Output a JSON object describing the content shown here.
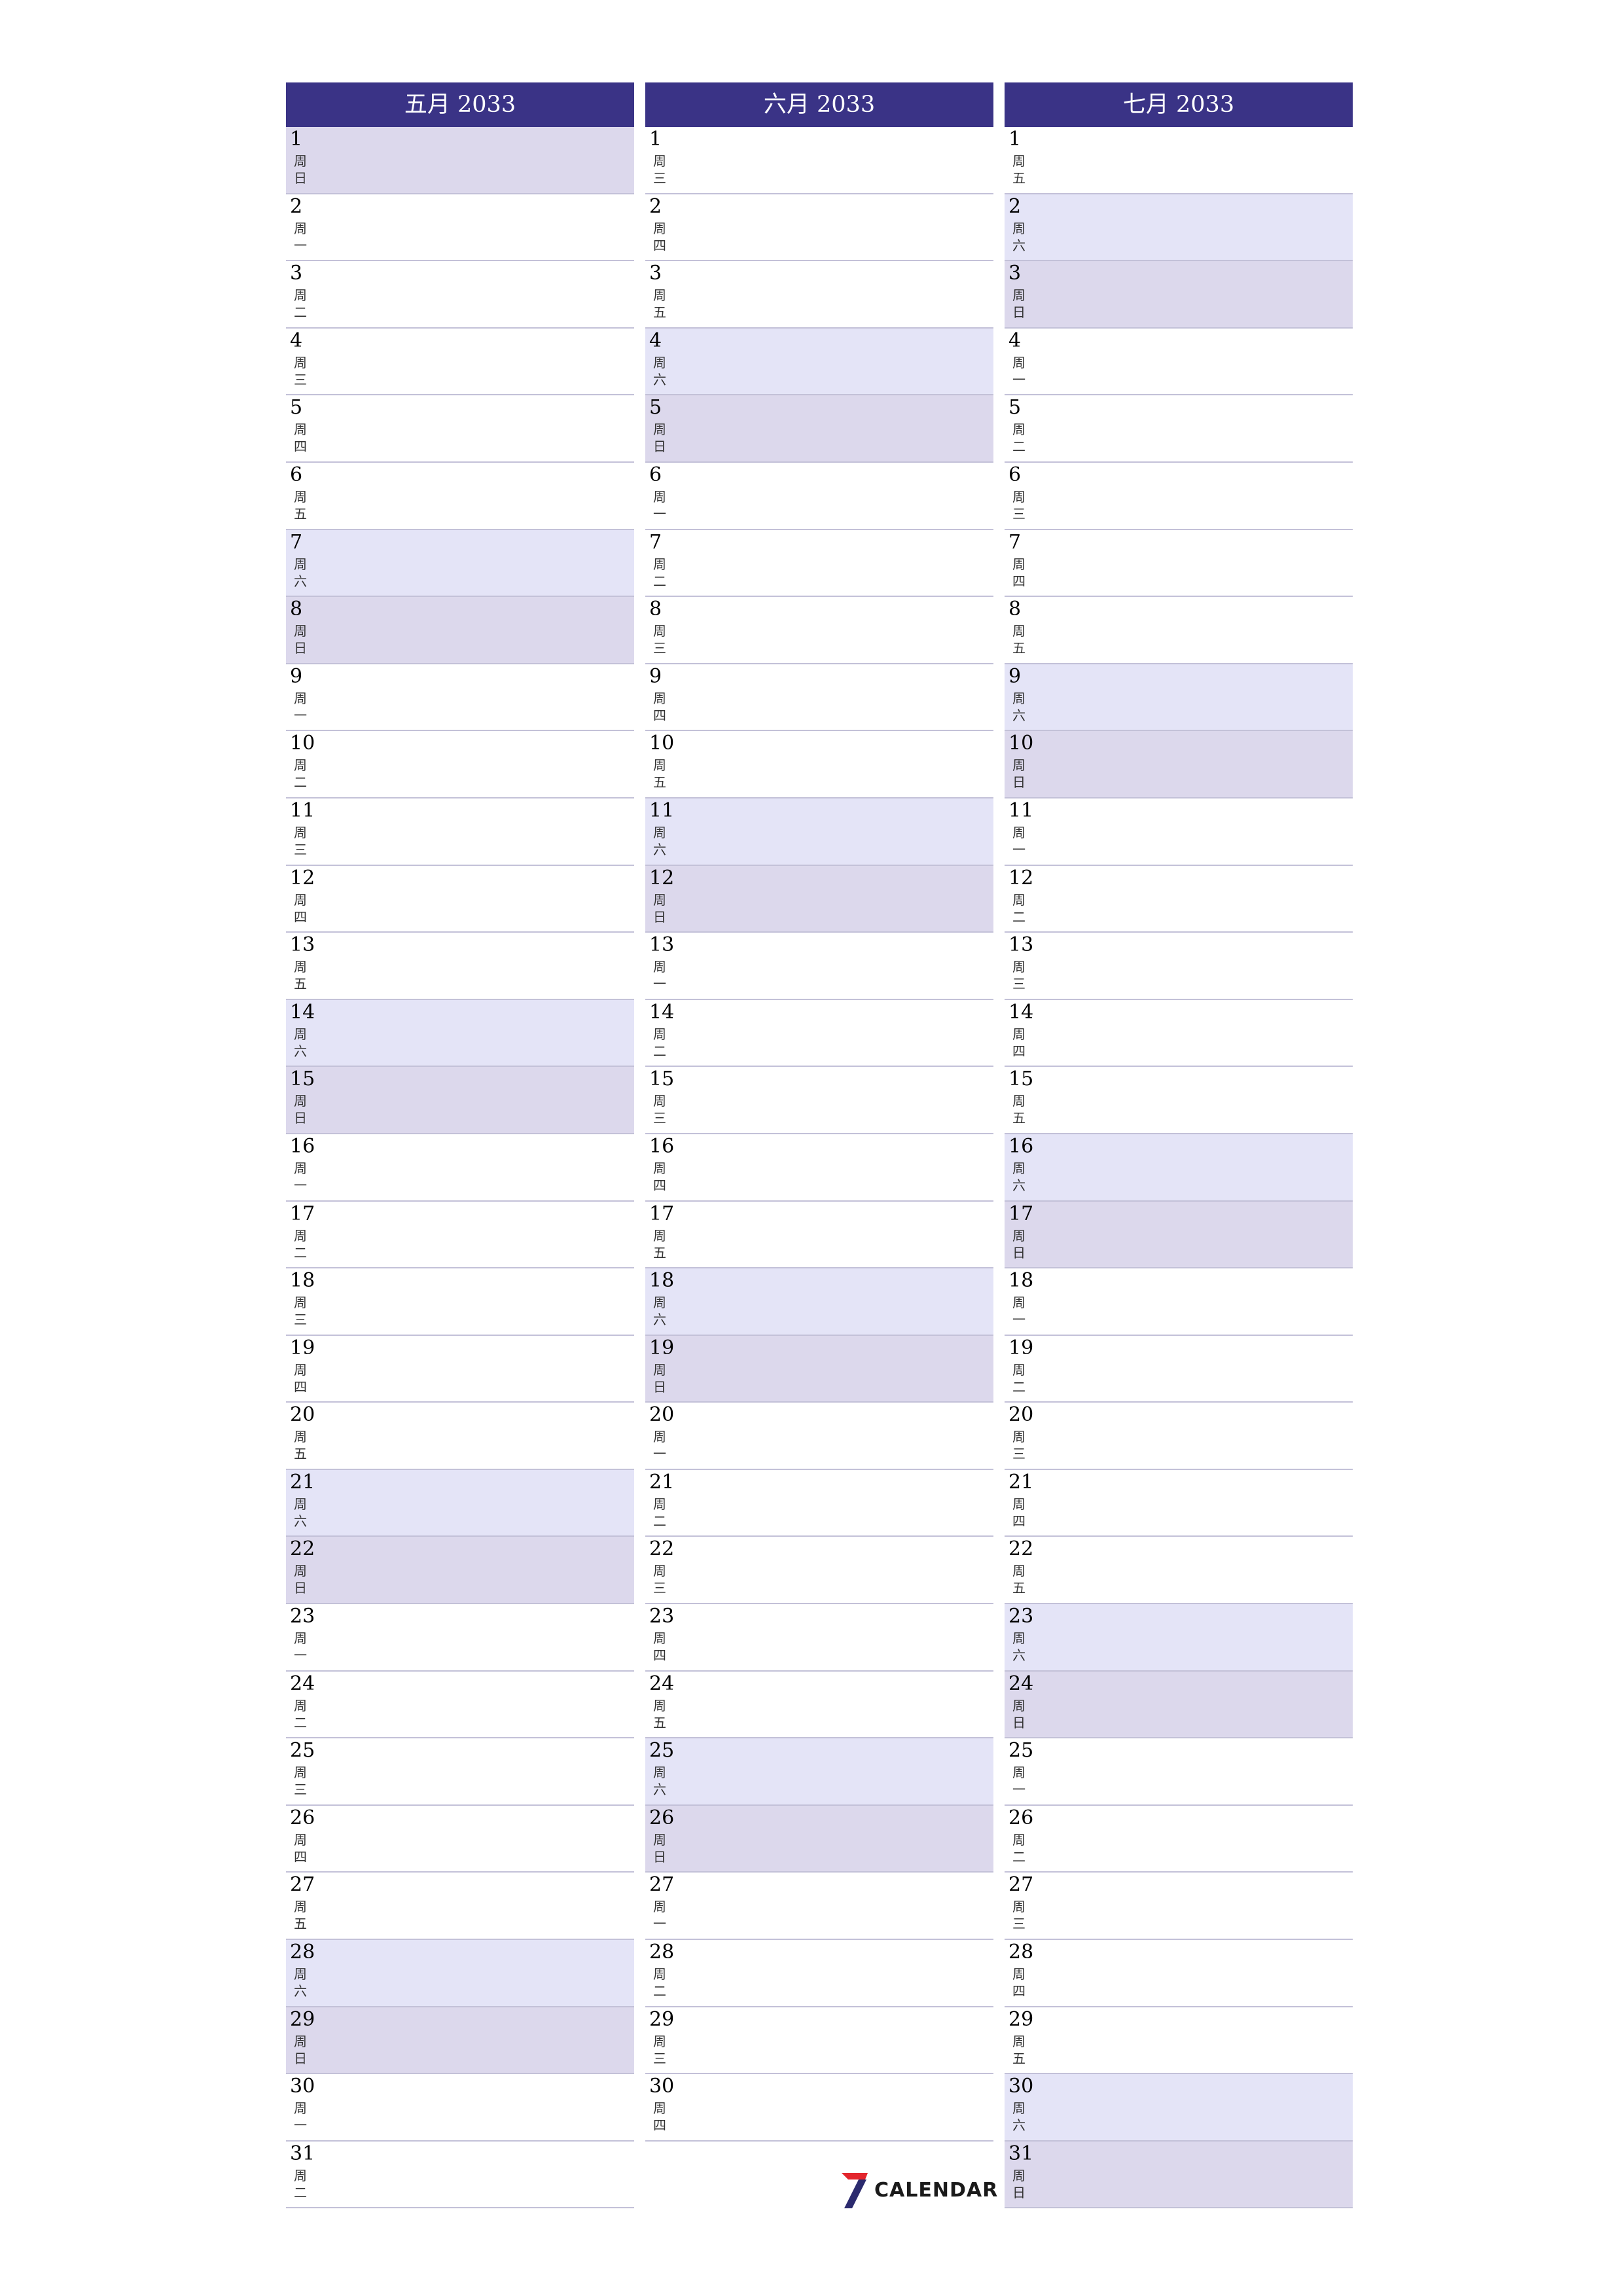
{
  "months": [
    {
      "title": "五月 2033",
      "days": [
        {
          "num": "1",
          "w": "日"
        },
        {
          "num": "2",
          "w": "一"
        },
        {
          "num": "3",
          "w": "二"
        },
        {
          "num": "4",
          "w": "三"
        },
        {
          "num": "5",
          "w": "四"
        },
        {
          "num": "6",
          "w": "五"
        },
        {
          "num": "7",
          "w": "六"
        },
        {
          "num": "8",
          "w": "日"
        },
        {
          "num": "9",
          "w": "一"
        },
        {
          "num": "10",
          "w": "二"
        },
        {
          "num": "11",
          "w": "三"
        },
        {
          "num": "12",
          "w": "四"
        },
        {
          "num": "13",
          "w": "五"
        },
        {
          "num": "14",
          "w": "六"
        },
        {
          "num": "15",
          "w": "日"
        },
        {
          "num": "16",
          "w": "一"
        },
        {
          "num": "17",
          "w": "二"
        },
        {
          "num": "18",
          "w": "三"
        },
        {
          "num": "19",
          "w": "四"
        },
        {
          "num": "20",
          "w": "五"
        },
        {
          "num": "21",
          "w": "六"
        },
        {
          "num": "22",
          "w": "日"
        },
        {
          "num": "23",
          "w": "一"
        },
        {
          "num": "24",
          "w": "二"
        },
        {
          "num": "25",
          "w": "三"
        },
        {
          "num": "26",
          "w": "四"
        },
        {
          "num": "27",
          "w": "五"
        },
        {
          "num": "28",
          "w": "六"
        },
        {
          "num": "29",
          "w": "日"
        },
        {
          "num": "30",
          "w": "一"
        },
        {
          "num": "31",
          "w": "二"
        }
      ]
    },
    {
      "title": "六月 2033",
      "days": [
        {
          "num": "1",
          "w": "三"
        },
        {
          "num": "2",
          "w": "四"
        },
        {
          "num": "3",
          "w": "五"
        },
        {
          "num": "4",
          "w": "六"
        },
        {
          "num": "5",
          "w": "日"
        },
        {
          "num": "6",
          "w": "一"
        },
        {
          "num": "7",
          "w": "二"
        },
        {
          "num": "8",
          "w": "三"
        },
        {
          "num": "9",
          "w": "四"
        },
        {
          "num": "10",
          "w": "五"
        },
        {
          "num": "11",
          "w": "六"
        },
        {
          "num": "12",
          "w": "日"
        },
        {
          "num": "13",
          "w": "一"
        },
        {
          "num": "14",
          "w": "二"
        },
        {
          "num": "15",
          "w": "三"
        },
        {
          "num": "16",
          "w": "四"
        },
        {
          "num": "17",
          "w": "五"
        },
        {
          "num": "18",
          "w": "六"
        },
        {
          "num": "19",
          "w": "日"
        },
        {
          "num": "20",
          "w": "一"
        },
        {
          "num": "21",
          "w": "二"
        },
        {
          "num": "22",
          "w": "三"
        },
        {
          "num": "23",
          "w": "四"
        },
        {
          "num": "24",
          "w": "五"
        },
        {
          "num": "25",
          "w": "六"
        },
        {
          "num": "26",
          "w": "日"
        },
        {
          "num": "27",
          "w": "一"
        },
        {
          "num": "28",
          "w": "二"
        },
        {
          "num": "29",
          "w": "三"
        },
        {
          "num": "30",
          "w": "四"
        }
      ]
    },
    {
      "title": "七月 2033",
      "days": [
        {
          "num": "1",
          "w": "五"
        },
        {
          "num": "2",
          "w": "六"
        },
        {
          "num": "3",
          "w": "日"
        },
        {
          "num": "4",
          "w": "一"
        },
        {
          "num": "5",
          "w": "二"
        },
        {
          "num": "6",
          "w": "三"
        },
        {
          "num": "7",
          "w": "四"
        },
        {
          "num": "8",
          "w": "五"
        },
        {
          "num": "9",
          "w": "六"
        },
        {
          "num": "10",
          "w": "日"
        },
        {
          "num": "11",
          "w": "一"
        },
        {
          "num": "12",
          "w": "二"
        },
        {
          "num": "13",
          "w": "三"
        },
        {
          "num": "14",
          "w": "四"
        },
        {
          "num": "15",
          "w": "五"
        },
        {
          "num": "16",
          "w": "六"
        },
        {
          "num": "17",
          "w": "日"
        },
        {
          "num": "18",
          "w": "一"
        },
        {
          "num": "19",
          "w": "二"
        },
        {
          "num": "20",
          "w": "三"
        },
        {
          "num": "21",
          "w": "四"
        },
        {
          "num": "22",
          "w": "五"
        },
        {
          "num": "23",
          "w": "六"
        },
        {
          "num": "24",
          "w": "日"
        },
        {
          "num": "25",
          "w": "一"
        },
        {
          "num": "26",
          "w": "二"
        },
        {
          "num": "27",
          "w": "三"
        },
        {
          "num": "28",
          "w": "四"
        },
        {
          "num": "29",
          "w": "五"
        },
        {
          "num": "30",
          "w": "六"
        },
        {
          "num": "31",
          "w": "日"
        }
      ]
    }
  ],
  "weekday_prefix": "周",
  "logo": {
    "mark": "7",
    "text": "CALENDAR"
  },
  "colors": {
    "header": "#3a3386",
    "saturday": "#e4e4f7",
    "sunday": "#dcd8ec",
    "logo_red": "#e3262d",
    "logo_navy": "#2b2a6e"
  }
}
